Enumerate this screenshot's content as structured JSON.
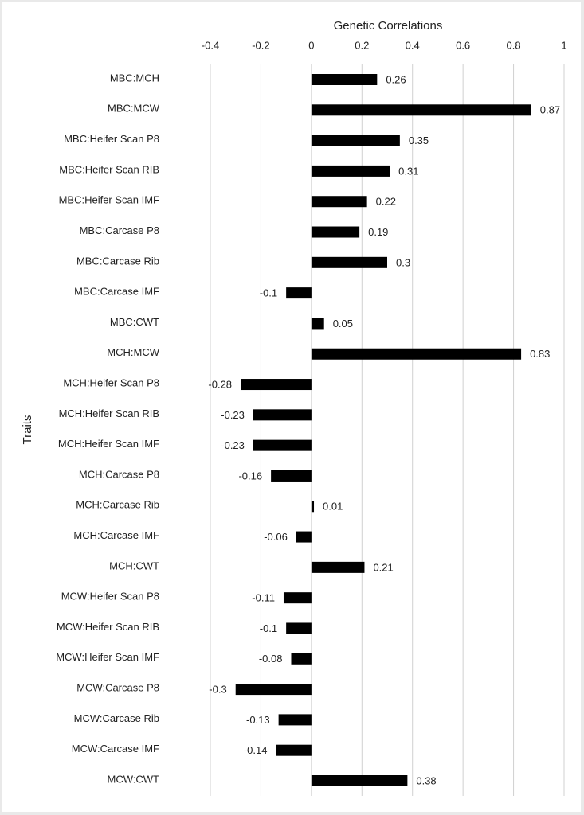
{
  "chart_data": {
    "type": "bar",
    "orientation": "horizontal",
    "x_label": "Genetic Correlations",
    "y_label": "Traits",
    "categories": [
      "MBC:MCH",
      "MBC:MCW",
      "MBC:Heifer Scan P8",
      "MBC:Heifer Scan RIB",
      "MBC:Heifer Scan IMF",
      "MBC:Carcase P8",
      "MBC:Carcase Rib",
      "MBC:Carcase IMF",
      "MBC:CWT",
      "MCH:MCW",
      "MCH:Heifer Scan P8",
      "MCH:Heifer Scan RIB",
      "MCH:Heifer Scan IMF",
      "MCH:Carcase P8",
      "MCH:Carcase Rib",
      "MCH:Carcase IMF",
      "MCH:CWT",
      "MCW:Heifer Scan P8",
      "MCW:Heifer Scan RIB",
      "MCW:Heifer Scan IMF",
      "MCW:Carcase P8",
      "MCW:Carcase Rib",
      "MCW:Carcase IMF",
      "MCW:CWT"
    ],
    "values": [
      0.26,
      0.87,
      0.35,
      0.31,
      0.22,
      0.19,
      0.3,
      -0.1,
      0.05,
      0.83,
      -0.28,
      -0.23,
      -0.23,
      -0.16,
      0.01,
      -0.06,
      0.21,
      -0.11,
      -0.1,
      -0.08,
      -0.3,
      -0.13,
      -0.14,
      0.38
    ],
    "color": "#000000",
    "xlim": [
      -0.4,
      1
    ],
    "xticks": [
      -0.4,
      -0.2,
      0,
      0.2,
      0.4,
      0.6,
      0.8,
      1
    ],
    "grid": true
  }
}
